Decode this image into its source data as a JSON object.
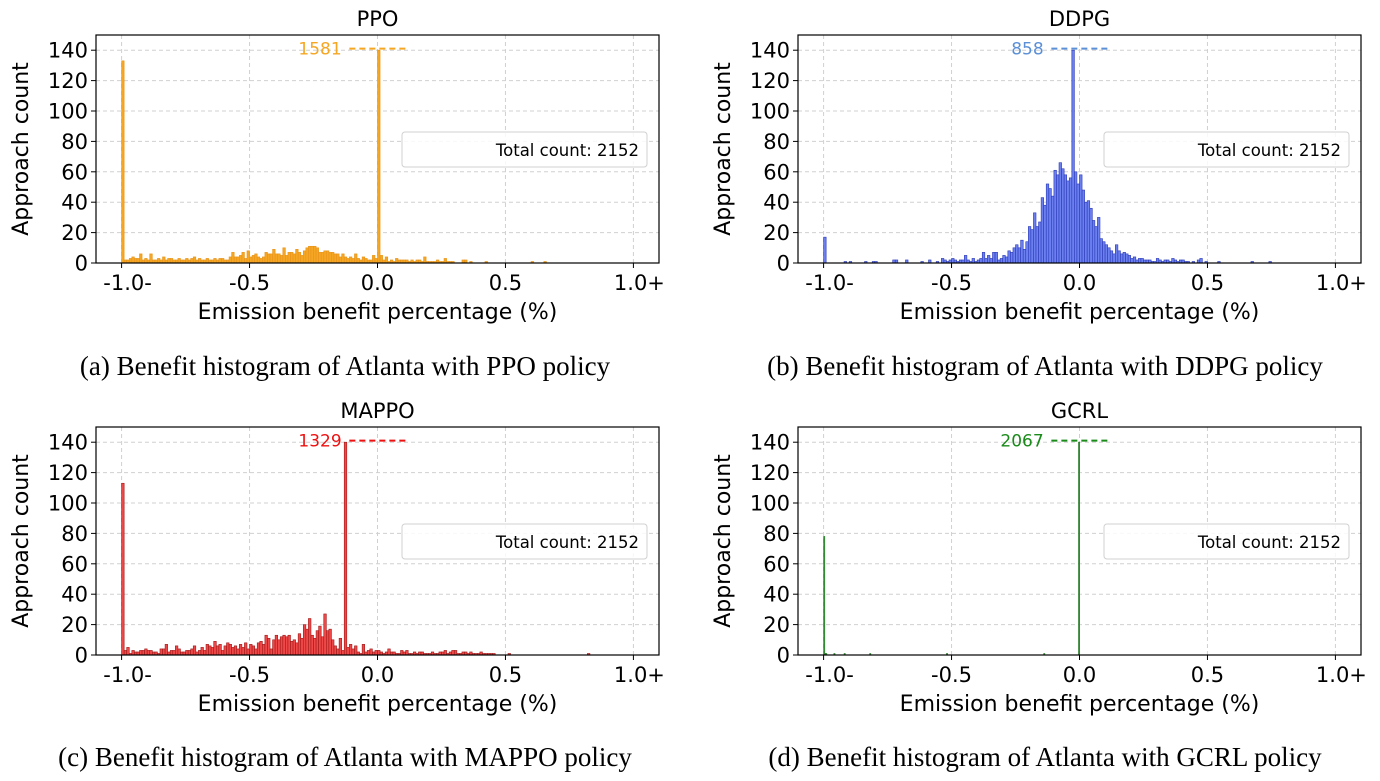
{
  "chart_data": [
    {
      "id": "ppo",
      "type": "bar",
      "subtype": "histogram",
      "title": "PPO",
      "xlabel": "Emission benefit percentage (%)",
      "ylabel": "Approach count",
      "xlim": [
        -1.1,
        1.1
      ],
      "ylim": [
        0,
        150
      ],
      "x_ticks": [
        -1.0,
        -0.5,
        0.0,
        0.5,
        1.0
      ],
      "x_tick_labels": [
        "-1.0-",
        "-0.5",
        "0.0",
        "0.5",
        "1.0+"
      ],
      "y_ticks": [
        0,
        20,
        40,
        60,
        80,
        100,
        120,
        140
      ],
      "y_tick_labels": [
        "0",
        "20",
        "40",
        "60",
        "80",
        "100",
        "120",
        "140"
      ],
      "grid": true,
      "bin_width": 0.01,
      "bins_start": [
        -1.0,
        -0.99,
        -0.98,
        -0.97,
        -0.96,
        -0.95,
        -0.94,
        -0.93,
        -0.92,
        -0.91,
        -0.9,
        -0.89,
        -0.88,
        -0.87,
        -0.86,
        -0.85,
        -0.84,
        -0.83,
        -0.82,
        -0.81,
        -0.8,
        -0.79,
        -0.78,
        -0.77,
        -0.76,
        -0.75,
        -0.74,
        -0.73,
        -0.72,
        -0.71,
        -0.7,
        -0.69,
        -0.68,
        -0.67,
        -0.66,
        -0.65,
        -0.64,
        -0.63,
        -0.62,
        -0.61,
        -0.6,
        -0.59,
        -0.58,
        -0.57,
        -0.56,
        -0.55,
        -0.54,
        -0.53,
        -0.52,
        -0.51,
        -0.5,
        -0.49,
        -0.48,
        -0.47,
        -0.46,
        -0.45,
        -0.44,
        -0.43,
        -0.42,
        -0.41,
        -0.4,
        -0.39,
        -0.38,
        -0.37,
        -0.36,
        -0.35,
        -0.34,
        -0.33,
        -0.32,
        -0.31,
        -0.3,
        -0.29,
        -0.28,
        -0.27,
        -0.26,
        -0.25,
        -0.24,
        -0.23,
        -0.22,
        -0.21,
        -0.2,
        -0.19,
        -0.18,
        -0.17,
        -0.16,
        -0.15,
        -0.14,
        -0.13,
        -0.12,
        -0.11,
        -0.1,
        -0.09,
        -0.08,
        -0.07,
        -0.06,
        -0.05,
        -0.04,
        -0.03,
        -0.02,
        -0.01,
        0.0,
        0.01,
        0.02,
        0.03,
        0.04,
        0.05,
        0.06,
        0.07,
        0.08,
        0.09,
        0.1,
        0.11,
        0.12,
        0.13,
        0.14,
        0.15,
        0.16,
        0.17,
        0.18,
        0.19,
        0.2,
        0.21,
        0.22,
        0.23,
        0.24,
        0.25,
        0.26,
        0.27,
        0.28,
        0.29,
        0.3,
        0.31,
        0.32,
        0.33,
        0.34,
        0.35,
        0.36,
        0.37,
        0.38,
        0.39,
        0.4,
        0.41,
        0.42,
        0.43,
        0.44,
        0.45,
        0.46,
        0.47,
        0.48,
        0.49,
        0.5,
        0.51,
        0.52,
        0.53,
        0.54,
        0.55,
        0.56,
        0.57,
        0.58,
        0.59,
        0.6,
        0.61,
        0.62,
        0.63,
        0.64,
        0.65
      ],
      "values": [
        133,
        2,
        2,
        3,
        4,
        3,
        3,
        6,
        2,
        3,
        2,
        6,
        2,
        2,
        3,
        2,
        4,
        2,
        3,
        3,
        2,
        2,
        3,
        2,
        2,
        3,
        2,
        3,
        4,
        2,
        3,
        2,
        2,
        3,
        2,
        2,
        3,
        2,
        3,
        3,
        2,
        2,
        4,
        7,
        4,
        4,
        5,
        7,
        3,
        8,
        4,
        5,
        6,
        4,
        3,
        4,
        7,
        6,
        6,
        9,
        6,
        6,
        5,
        10,
        5,
        7,
        7,
        6,
        9,
        7,
        5,
        8,
        10,
        11,
        11,
        11,
        10,
        7,
        7,
        8,
        8,
        7,
        7,
        6,
        6,
        4,
        6,
        4,
        3,
        4,
        3,
        6,
        3,
        2,
        4,
        3,
        2,
        2,
        5,
        3,
        140,
        5,
        2,
        4,
        1,
        2,
        1,
        3,
        2,
        2,
        2,
        2,
        1,
        2,
        1,
        2,
        2,
        1,
        4,
        1,
        1,
        1,
        1,
        2,
        1,
        1,
        3,
        1,
        1,
        1,
        0,
        0,
        0,
        2,
        2,
        0,
        1,
        0,
        0,
        0,
        0,
        0,
        1,
        0,
        0,
        0,
        0,
        0,
        0,
        0,
        0,
        0,
        0,
        0,
        0,
        0,
        0,
        0,
        0,
        0,
        1,
        0,
        0,
        0,
        0,
        1
      ],
      "color": "#f5a623",
      "edge_color": "#e8941a",
      "annotation": {
        "text": "1581",
        "color": "#f5a623",
        "y": 141
      },
      "legend": {
        "text": "Total count: 2152",
        "position": "center-right"
      }
    },
    {
      "id": "ddpg",
      "type": "bar",
      "subtype": "histogram",
      "title": "DDPG",
      "xlabel": "Emission benefit percentage (%)",
      "ylabel": "Approach count",
      "xlim": [
        -1.1,
        1.1
      ],
      "ylim": [
        0,
        150
      ],
      "x_ticks": [
        -1.0,
        -0.5,
        0.0,
        0.5,
        1.0
      ],
      "x_tick_labels": [
        "-1.0-",
        "-0.5",
        "0.0",
        "0.5",
        "1.0+"
      ],
      "y_ticks": [
        0,
        20,
        40,
        60,
        80,
        100,
        120,
        140
      ],
      "y_tick_labels": [
        "0",
        "20",
        "40",
        "60",
        "80",
        "100",
        "120",
        "140"
      ],
      "grid": true,
      "bin_width": 0.01,
      "bins_start": [
        -1.0,
        -0.92,
        -0.9,
        -0.84,
        -0.81,
        -0.8,
        -0.73,
        -0.72,
        -0.68,
        -0.62,
        -0.59,
        -0.56,
        -0.54,
        -0.53,
        -0.52,
        -0.51,
        -0.5,
        -0.49,
        -0.48,
        -0.47,
        -0.46,
        -0.45,
        -0.44,
        -0.43,
        -0.42,
        -0.41,
        -0.4,
        -0.39,
        -0.38,
        -0.37,
        -0.36,
        -0.35,
        -0.34,
        -0.33,
        -0.32,
        -0.31,
        -0.3,
        -0.29,
        -0.28,
        -0.27,
        -0.26,
        -0.25,
        -0.24,
        -0.23,
        -0.22,
        -0.21,
        -0.2,
        -0.19,
        -0.18,
        -0.17,
        -0.16,
        -0.15,
        -0.14,
        -0.13,
        -0.12,
        -0.11,
        -0.1,
        -0.09,
        -0.08,
        -0.07,
        -0.06,
        -0.05,
        -0.04,
        -0.03,
        -0.02,
        -0.01,
        0.0,
        0.01,
        0.02,
        0.03,
        0.04,
        0.05,
        0.06,
        0.07,
        0.08,
        0.09,
        0.1,
        0.11,
        0.12,
        0.13,
        0.14,
        0.15,
        0.16,
        0.17,
        0.18,
        0.19,
        0.2,
        0.21,
        0.22,
        0.23,
        0.24,
        0.25,
        0.26,
        0.27,
        0.28,
        0.29,
        0.3,
        0.31,
        0.32,
        0.33,
        0.34,
        0.35,
        0.36,
        0.37,
        0.38,
        0.39,
        0.4,
        0.41,
        0.42,
        0.44,
        0.46,
        0.47,
        0.49,
        0.54,
        0.67,
        0.74
      ],
      "values": [
        17,
        1,
        1,
        1,
        1,
        1,
        2,
        2,
        2,
        1,
        2,
        1,
        3,
        2,
        1,
        2,
        3,
        2,
        1,
        2,
        2,
        5,
        2,
        1,
        3,
        1,
        2,
        3,
        7,
        3,
        5,
        3,
        7,
        7,
        2,
        3,
        5,
        4,
        8,
        7,
        10,
        12,
        10,
        15,
        9,
        14,
        24,
        22,
        33,
        24,
        27,
        43,
        38,
        52,
        49,
        44,
        61,
        58,
        66,
        62,
        58,
        54,
        56,
        140,
        60,
        52,
        58,
        48,
        40,
        41,
        36,
        28,
        24,
        30,
        16,
        14,
        12,
        10,
        8,
        6,
        12,
        8,
        6,
        7,
        6,
        5,
        3,
        4,
        2,
        3,
        3,
        2,
        2,
        2,
        1,
        1,
        3,
        2,
        1,
        2,
        2,
        1,
        3,
        2,
        1,
        2,
        2,
        1,
        1,
        1,
        2,
        3,
        1,
        1,
        1,
        1,
        1,
        2,
        1
      ],
      "color": "#6b7ff0",
      "edge_color": "#2b3ab5",
      "annotation": {
        "text": "858",
        "color": "#5b8fd6",
        "y": 141
      },
      "legend": {
        "text": "Total count: 2152",
        "position": "center-right"
      }
    },
    {
      "id": "mappo",
      "type": "bar",
      "subtype": "histogram",
      "title": "MAPPO",
      "xlabel": "Emission benefit percentage (%)",
      "ylabel": "Approach count",
      "xlim": [
        -1.1,
        1.1
      ],
      "ylim": [
        0,
        150
      ],
      "x_ticks": [
        -1.0,
        -0.5,
        0.0,
        0.5,
        1.0
      ],
      "x_tick_labels": [
        "-1.0-",
        "-0.5",
        "0.0",
        "0.5",
        "1.0+"
      ],
      "y_ticks": [
        0,
        20,
        40,
        60,
        80,
        100,
        120,
        140
      ],
      "y_tick_labels": [
        "0",
        "20",
        "40",
        "60",
        "80",
        "100",
        "120",
        "140"
      ],
      "grid": true,
      "bin_width": 0.01,
      "bins_start": [
        -1.0,
        -0.99,
        -0.98,
        -0.97,
        -0.96,
        -0.95,
        -0.94,
        -0.93,
        -0.92,
        -0.91,
        -0.9,
        -0.89,
        -0.88,
        -0.87,
        -0.86,
        -0.85,
        -0.84,
        -0.83,
        -0.82,
        -0.81,
        -0.8,
        -0.79,
        -0.78,
        -0.77,
        -0.76,
        -0.75,
        -0.74,
        -0.73,
        -0.72,
        -0.71,
        -0.7,
        -0.69,
        -0.68,
        -0.67,
        -0.66,
        -0.65,
        -0.64,
        -0.63,
        -0.62,
        -0.61,
        -0.6,
        -0.59,
        -0.58,
        -0.57,
        -0.56,
        -0.55,
        -0.54,
        -0.53,
        -0.52,
        -0.51,
        -0.5,
        -0.49,
        -0.48,
        -0.47,
        -0.46,
        -0.45,
        -0.44,
        -0.43,
        -0.42,
        -0.41,
        -0.4,
        -0.39,
        -0.38,
        -0.37,
        -0.36,
        -0.35,
        -0.34,
        -0.33,
        -0.32,
        -0.31,
        -0.3,
        -0.29,
        -0.28,
        -0.27,
        -0.26,
        -0.25,
        -0.24,
        -0.23,
        -0.22,
        -0.21,
        -0.2,
        -0.19,
        -0.18,
        -0.17,
        -0.16,
        -0.15,
        -0.14,
        -0.13,
        -0.12,
        -0.11,
        -0.1,
        -0.09,
        -0.08,
        -0.07,
        -0.06,
        -0.05,
        -0.04,
        -0.03,
        -0.02,
        -0.01,
        0.0,
        0.01,
        0.02,
        0.03,
        0.04,
        0.05,
        0.06,
        0.07,
        0.08,
        0.09,
        0.1,
        0.11,
        0.12,
        0.13,
        0.14,
        0.15,
        0.16,
        0.17,
        0.18,
        0.19,
        0.2,
        0.21,
        0.22,
        0.23,
        0.24,
        0.25,
        0.26,
        0.27,
        0.28,
        0.29,
        0.3,
        0.31,
        0.32,
        0.33,
        0.34,
        0.35,
        0.36,
        0.37,
        0.38,
        0.39,
        0.4,
        0.41,
        0.42,
        0.43,
        0.44,
        0.45,
        0.46,
        0.47,
        0.48,
        0.49,
        0.5,
        0.51,
        0.52,
        0.53,
        0.54,
        0.55,
        0.56,
        0.57,
        0.58,
        0.59,
        0.6,
        0.61,
        0.62,
        0.63,
        0.64,
        0.82
      ],
      "values": [
        113,
        3,
        5,
        1,
        3,
        2,
        2,
        3,
        3,
        4,
        3,
        3,
        2,
        2,
        1,
        4,
        4,
        7,
        2,
        3,
        3,
        6,
        4,
        2,
        2,
        3,
        3,
        4,
        6,
        2,
        3,
        5,
        3,
        7,
        6,
        5,
        9,
        6,
        7,
        3,
        6,
        8,
        7,
        5,
        6,
        4,
        7,
        5,
        8,
        4,
        7,
        6,
        4,
        8,
        9,
        7,
        13,
        11,
        4,
        10,
        13,
        10,
        12,
        13,
        12,
        13,
        9,
        10,
        8,
        14,
        11,
        20,
        17,
        24,
        13,
        11,
        16,
        19,
        12,
        27,
        16,
        17,
        10,
        6,
        4,
        11,
        3,
        140,
        5,
        7,
        4,
        6,
        2,
        1,
        7,
        2,
        3,
        4,
        2,
        3,
        3,
        2,
        1,
        2,
        4,
        2,
        2,
        1,
        1,
        3,
        2,
        3,
        1,
        1,
        2,
        1,
        2,
        2,
        1,
        1,
        1,
        2,
        1,
        1,
        2,
        2,
        3,
        1,
        2,
        3,
        3,
        1,
        1,
        2,
        2,
        1,
        2,
        1,
        1,
        1,
        2,
        1,
        1,
        1,
        1,
        1,
        0,
        0,
        0,
        0,
        0,
        1,
        0,
        0,
        0,
        0,
        0,
        0,
        0,
        0,
        0,
        0,
        0,
        0,
        0,
        1
      ],
      "color": "#f04848",
      "edge_color": "#a01818",
      "annotation": {
        "text": "1329",
        "color": "#ee1111",
        "y": 141
      },
      "legend": {
        "text": "Total count: 2152",
        "position": "center-right"
      }
    },
    {
      "id": "gcrl",
      "type": "bar",
      "subtype": "histogram",
      "title": "GCRL",
      "xlabel": "Emission benefit percentage (%)",
      "ylabel": "Approach count",
      "xlim": [
        -1.1,
        1.1
      ],
      "ylim": [
        0,
        150
      ],
      "x_ticks": [
        -1.0,
        -0.5,
        0.0,
        0.5,
        1.0
      ],
      "x_tick_labels": [
        "-1.0-",
        "-0.5",
        "0.0",
        "0.5",
        "1.0+"
      ],
      "y_ticks": [
        0,
        20,
        40,
        60,
        80,
        100,
        120,
        140
      ],
      "y_tick_labels": [
        "0",
        "20",
        "40",
        "60",
        "80",
        "100",
        "120",
        "140"
      ],
      "grid": true,
      "bin_width": 0.004,
      "bins_start": [
        -1.0,
        -0.996,
        -0.992,
        -0.96,
        -0.92,
        -0.82,
        -0.52,
        -0.14,
        -0.004
      ],
      "values": [
        78,
        1,
        1,
        1,
        1,
        1,
        1,
        1,
        140
      ],
      "color": "#3a9a3a",
      "edge_color": "#2a7a2a",
      "annotation": {
        "text": "2067",
        "color": "#1a8a1a",
        "y": 141
      },
      "legend": {
        "text": "Total count: 2152",
        "position": "center-right"
      }
    }
  ],
  "captions": [
    "(a) Benefit histogram of Atlanta with PPO policy",
    "(b) Benefit histogram of Atlanta with DDPG policy",
    "(c) Benefit histogram of Atlanta with MAPPO policy",
    "(d) Benefit histogram of Atlanta with GCRL policy"
  ]
}
